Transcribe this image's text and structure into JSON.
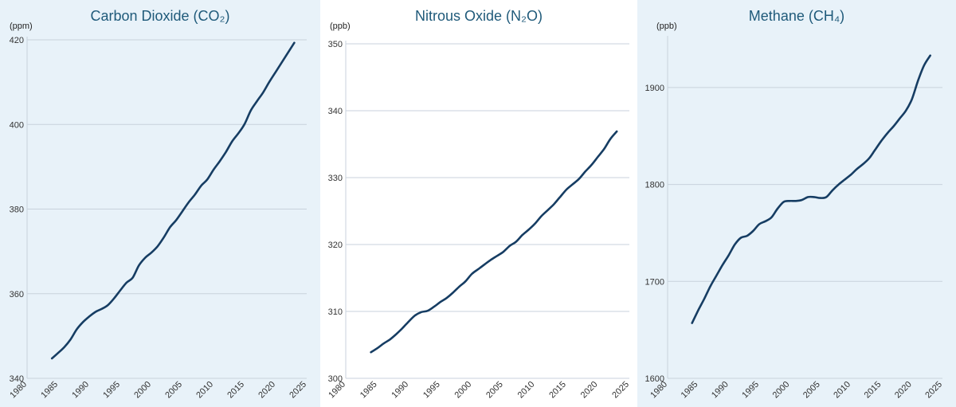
{
  "colors": {
    "panel_bg_shaded": "#e8f2f9",
    "panel_bg_plain": "#ffffff",
    "title": "#1f5a7a",
    "line": "#163d63",
    "grid": "#c8d2dc",
    "axis": "#999999"
  },
  "chart_data": [
    {
      "type": "line",
      "title": "Carbon Dioxide (CO₂)",
      "unit_label": "(ppm)",
      "xlim": [
        1980,
        2025
      ],
      "ylim": [
        340,
        420
      ],
      "x_ticks": [
        "1980",
        "1985",
        "1990",
        "1995",
        "2000",
        "2005",
        "2010",
        "2015",
        "2020",
        "2025"
      ],
      "y_ticks": [
        "340",
        "360",
        "380",
        "400",
        "420"
      ],
      "grid": true,
      "series": [
        {
          "x": [
            1984,
            1985,
            1986,
            1987,
            1988,
            1989,
            1990,
            1991,
            1992,
            1993,
            1994,
            1995,
            1996,
            1997,
            1998,
            1999,
            2000,
            2001,
            2002,
            2003,
            2004,
            2005,
            2006,
            2007,
            2008,
            2009,
            2010,
            2011,
            2012,
            2013,
            2014,
            2015,
            2016,
            2017,
            2018,
            2019,
            2020,
            2021,
            2022,
            2023
          ],
          "values": [
            344.7,
            346.0,
            347.4,
            349.2,
            351.6,
            353.3,
            354.6,
            355.7,
            356.4,
            357.3,
            358.9,
            360.8,
            362.6,
            363.8,
            366.7,
            368.5,
            369.7,
            371.2,
            373.3,
            375.7,
            377.4,
            379.5,
            381.6,
            383.4,
            385.5,
            387.0,
            389.3,
            391.3,
            393.5,
            396.0,
            397.9,
            400.1,
            403.3,
            405.5,
            407.6,
            410.1,
            412.4,
            414.7,
            417.0,
            419.3
          ]
        }
      ]
    },
    {
      "type": "line",
      "title": "Nitrous Oxide (N₂O)",
      "unit_label": "(ppb)",
      "xlim": [
        1980,
        2025
      ],
      "ylim": [
        300,
        350
      ],
      "x_ticks": [
        "1980",
        "1985",
        "1990",
        "1995",
        "2000",
        "2005",
        "2010",
        "2015",
        "2020",
        "2025"
      ],
      "y_ticks": [
        "300",
        "310",
        "320",
        "330",
        "340",
        "350"
      ],
      "grid": true,
      "series": [
        {
          "x": [
            1984,
            1985,
            1986,
            1987,
            1988,
            1989,
            1990,
            1991,
            1992,
            1993,
            1994,
            1995,
            1996,
            1997,
            1998,
            1999,
            2000,
            2001,
            2002,
            2003,
            2004,
            2005,
            2006,
            2007,
            2008,
            2009,
            2010,
            2011,
            2012,
            2013,
            2014,
            2015,
            2016,
            2017,
            2018,
            2019,
            2020,
            2021,
            2022,
            2023
          ],
          "values": [
            303.9,
            304.5,
            305.2,
            305.8,
            306.6,
            307.5,
            308.5,
            309.4,
            309.9,
            310.1,
            310.7,
            311.4,
            312.0,
            312.8,
            313.7,
            314.5,
            315.6,
            316.3,
            317.0,
            317.7,
            318.3,
            318.9,
            319.8,
            320.4,
            321.4,
            322.2,
            323.1,
            324.2,
            325.1,
            326.0,
            327.1,
            328.2,
            329.0,
            329.8,
            330.9,
            331.9,
            333.1,
            334.3,
            335.8,
            336.9
          ]
        }
      ]
    },
    {
      "type": "line",
      "title": "Methane (CH₄)",
      "unit_label": "(ppb)",
      "xlim": [
        1980,
        2025
      ],
      "ylim": [
        1600,
        1950
      ],
      "x_ticks": [
        "1980",
        "1985",
        "1990",
        "1995",
        "2000",
        "2005",
        "2010",
        "2015",
        "2020",
        "2025"
      ],
      "y_ticks": [
        "1600",
        "1700",
        "1800",
        "1900"
      ],
      "grid": true,
      "series": [
        {
          "x": [
            1984,
            1985,
            1986,
            1987,
            1988,
            1989,
            1990,
            1991,
            1992,
            1993,
            1994,
            1995,
            1996,
            1997,
            1998,
            1999,
            2000,
            2001,
            2002,
            2003,
            2004,
            2005,
            2006,
            2007,
            2008,
            2009,
            2010,
            2011,
            2012,
            2013,
            2014,
            2015,
            2016,
            2017,
            2018,
            2019,
            2020,
            2021,
            2022,
            2023
          ],
          "values": [
            1657,
            1670,
            1682,
            1695,
            1706,
            1717,
            1727,
            1738,
            1745,
            1747,
            1752,
            1759,
            1762,
            1766,
            1775,
            1782,
            1783,
            1783,
            1784,
            1787,
            1787,
            1786,
            1787,
            1794,
            1800,
            1805,
            1810,
            1816,
            1821,
            1827,
            1836,
            1845,
            1853,
            1860,
            1868,
            1876,
            1888,
            1907,
            1923,
            1933
          ]
        }
      ]
    }
  ]
}
